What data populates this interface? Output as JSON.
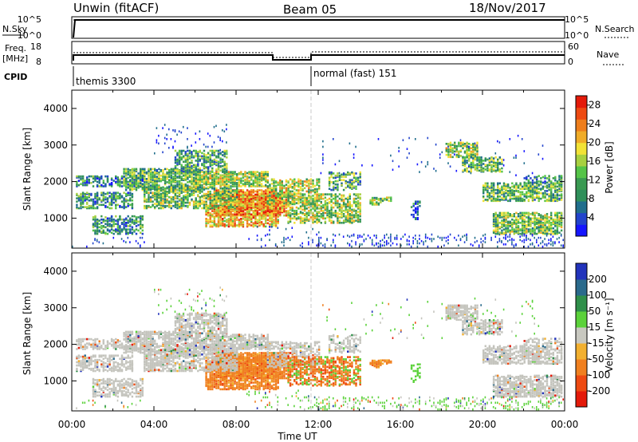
{
  "header": {
    "station": "Unwin (fitACF)",
    "beam": "Beam 05",
    "date": "18/Nov/2017"
  },
  "strip": {
    "nsky_label": "N.Sky",
    "nsky_ticks": [
      "10^5",
      "10^0"
    ],
    "nsearch_ticks": [
      "10^5",
      "10^0"
    ],
    "nsearch_label": "N.Search",
    "freq_label": "Freq.",
    "freq_unit": "[MHz]",
    "freq_ticks": [
      "18",
      "8"
    ],
    "nave_ticks": [
      "60",
      "0"
    ],
    "nave_label": "Nave",
    "cpid_label": "CPID",
    "cpid_modes": [
      "themis 3300",
      "normal (fast) 151"
    ]
  },
  "chart_data": [
    {
      "type": "heatmap",
      "name": "power-panel",
      "ylabel": "Slant Range [km]",
      "ylim": [
        180,
        4500
      ],
      "yticks": [
        "1000",
        "2000",
        "3000",
        "4000"
      ],
      "xlim_hours": [
        0,
        24
      ],
      "colorbar": {
        "label": "Power [dB]",
        "ticks": [
          "4",
          "8",
          "12",
          "16",
          "20",
          "24",
          "28"
        ],
        "range": [
          0,
          30
        ],
        "colors": [
          "#1515ff",
          "#2244cc",
          "#206e8c",
          "#2f8f5a",
          "#3a9a52",
          "#55c448",
          "#a8d040",
          "#f2e236",
          "#f0ac28",
          "#ee7e1c",
          "#ee4a12",
          "#e41a0a"
        ]
      }
    },
    {
      "type": "heatmap",
      "name": "velocity-panel",
      "ylabel": "Slant Range [km]",
      "ylim": [
        180,
        4500
      ],
      "yticks": [
        "1000",
        "2000",
        "3000",
        "4000"
      ],
      "xlim_hours": [
        0,
        24
      ],
      "colorbar": {
        "label": "Velocity [m s⁻¹]",
        "ticks": [
          "200",
          "100",
          "50",
          "15",
          "-15",
          "-50",
          "-100",
          "-200"
        ],
        "colors": [
          "#2233bb",
          "#2a6a8c",
          "#2f8f4a",
          "#5bd23a",
          "#c8c8c0",
          "#f2b030",
          "#f08020",
          "#ee4a12",
          "#e41a0a"
        ]
      }
    }
  ],
  "xaxis": {
    "ticks": [
      "00:00",
      "04:00",
      "08:00",
      "12:00",
      "16:00",
      "20:00",
      "00:00"
    ],
    "label": "Time UT"
  },
  "colors": {
    "grey_scatter": "#c4c4bd",
    "frame": "#000000"
  }
}
